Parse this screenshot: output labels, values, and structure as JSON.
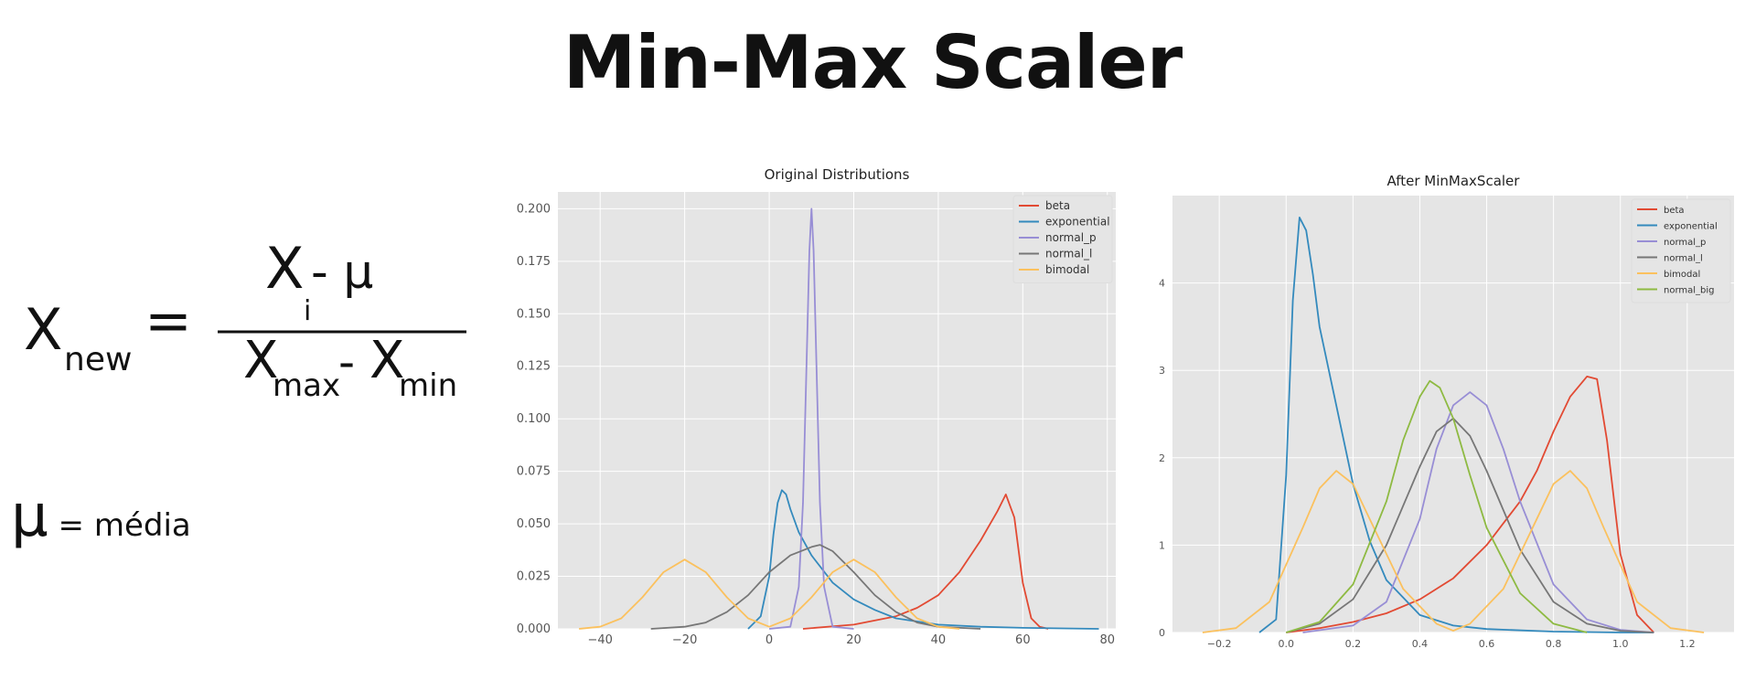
{
  "page": {
    "title": "Min-Max Scaler"
  },
  "formula": {
    "lhs_base": "X",
    "lhs_sub": "new",
    "equals": "=",
    "num_base": "X",
    "num_sub": "i",
    "num_rest": " - μ",
    "den_base1": "X",
    "den_sub1": "max",
    "den_mid": "- ",
    "den_base2": "X",
    "den_sub2": "min"
  },
  "legend_note": {
    "symbol": "μ",
    "text": " = média"
  },
  "chart_data": [
    {
      "type": "line",
      "title": "Original Distributions",
      "xlim": [
        -50,
        82
      ],
      "ylim": [
        0,
        0.208
      ],
      "xticks": [
        -40,
        -20,
        0,
        20,
        40,
        60,
        80
      ],
      "yticks": [
        0.0,
        0.025,
        0.05,
        0.075,
        0.1,
        0.125,
        0.15,
        0.175,
        0.2
      ],
      "ytick_labels": [
        "0.000",
        "0.025",
        "0.050",
        "0.075",
        "0.100",
        "0.125",
        "0.150",
        "0.175",
        "0.200"
      ],
      "xtick_labels": [
        "−40",
        "−20",
        "0",
        "20",
        "40",
        "60",
        "80"
      ],
      "grid": true,
      "legend": "top-right",
      "series": [
        {
          "name": "beta",
          "color": "#E24A33",
          "x": [
            8,
            20,
            30,
            35,
            40,
            45,
            50,
            54,
            56,
            58,
            60,
            62,
            64,
            66
          ],
          "y": [
            0,
            0.002,
            0.006,
            0.01,
            0.016,
            0.027,
            0.042,
            0.056,
            0.064,
            0.053,
            0.022,
            0.005,
            0.001,
            0
          ]
        },
        {
          "name": "exponential",
          "color": "#348ABD",
          "x": [
            -5,
            -2,
            0,
            1,
            2,
            3,
            4,
            5,
            7,
            10,
            15,
            20,
            25,
            30,
            40,
            50,
            60,
            78
          ],
          "y": [
            0,
            0.006,
            0.025,
            0.045,
            0.06,
            0.066,
            0.064,
            0.057,
            0.046,
            0.035,
            0.022,
            0.014,
            0.009,
            0.005,
            0.002,
            0.001,
            0.0005,
            0
          ]
        },
        {
          "name": "normal_p",
          "color": "#988ED5",
          "x": [
            0,
            5,
            7,
            8,
            9,
            9.5,
            10,
            10.5,
            11,
            12,
            13,
            15,
            20
          ],
          "y": [
            0,
            0.001,
            0.02,
            0.06,
            0.14,
            0.18,
            0.2,
            0.18,
            0.14,
            0.06,
            0.02,
            0.001,
            0
          ]
        },
        {
          "name": "normal_l",
          "color": "#777777",
          "x": [
            -28,
            -20,
            -15,
            -10,
            -5,
            0,
            5,
            10,
            12,
            15,
            20,
            25,
            30,
            35,
            40,
            50
          ],
          "y": [
            0,
            0.001,
            0.003,
            0.008,
            0.016,
            0.027,
            0.035,
            0.039,
            0.04,
            0.037,
            0.027,
            0.016,
            0.008,
            0.003,
            0.001,
            0
          ]
        },
        {
          "name": "bimodal",
          "color": "#FBC15E",
          "x": [
            -45,
            -40,
            -35,
            -30,
            -25,
            -20,
            -15,
            -10,
            -5,
            0,
            5,
            10,
            15,
            20,
            25,
            30,
            35,
            40,
            45
          ],
          "y": [
            0,
            0.001,
            0.005,
            0.015,
            0.027,
            0.033,
            0.027,
            0.015,
            0.005,
            0.001,
            0.005,
            0.015,
            0.027,
            0.033,
            0.027,
            0.015,
            0.005,
            0.001,
            0
          ]
        }
      ]
    },
    {
      "type": "line",
      "title": "After MinMaxScaler",
      "xlim": [
        -0.34,
        1.34
      ],
      "ylim": [
        0,
        5.0
      ],
      "xticks": [
        -0.2,
        0.0,
        0.2,
        0.4,
        0.6,
        0.8,
        1.0,
        1.2
      ],
      "xtick_labels": [
        "−0.2",
        "0.0",
        "0.2",
        "0.4",
        "0.6",
        "0.8",
        "1.0",
        "1.2"
      ],
      "yticks": [
        0,
        1,
        2,
        3,
        4
      ],
      "ytick_labels": [
        "0",
        "1",
        "2",
        "3",
        "4"
      ],
      "grid": true,
      "legend": "top-right",
      "series": [
        {
          "name": "beta",
          "color": "#E24A33",
          "x": [
            0.0,
            0.1,
            0.2,
            0.3,
            0.4,
            0.5,
            0.6,
            0.7,
            0.75,
            0.8,
            0.85,
            0.9,
            0.93,
            0.96,
            1.0,
            1.05,
            1.1
          ],
          "y": [
            0,
            0.05,
            0.12,
            0.22,
            0.38,
            0.62,
            1.0,
            1.5,
            1.85,
            2.3,
            2.7,
            2.93,
            2.9,
            2.2,
            0.9,
            0.2,
            0
          ]
        },
        {
          "name": "exponential",
          "color": "#348ABD",
          "x": [
            -0.08,
            -0.03,
            0.0,
            0.02,
            0.04,
            0.06,
            0.08,
            0.1,
            0.15,
            0.2,
            0.25,
            0.3,
            0.4,
            0.5,
            0.6,
            0.8,
            1.0,
            1.1
          ],
          "y": [
            0,
            0.15,
            1.8,
            3.8,
            4.75,
            4.6,
            4.1,
            3.5,
            2.6,
            1.7,
            1.05,
            0.6,
            0.2,
            0.08,
            0.04,
            0.01,
            0,
            0
          ]
        },
        {
          "name": "normal_p",
          "color": "#988ED5",
          "x": [
            0.05,
            0.2,
            0.3,
            0.4,
            0.45,
            0.5,
            0.55,
            0.6,
            0.65,
            0.7,
            0.8,
            0.9,
            1.0,
            1.1
          ],
          "y": [
            0,
            0.08,
            0.35,
            1.3,
            2.1,
            2.6,
            2.75,
            2.6,
            2.1,
            1.5,
            0.55,
            0.15,
            0.03,
            0
          ]
        },
        {
          "name": "normal_l",
          "color": "#777777",
          "x": [
            0.0,
            0.1,
            0.2,
            0.3,
            0.4,
            0.45,
            0.5,
            0.55,
            0.6,
            0.7,
            0.8,
            0.9,
            1.0,
            1.1
          ],
          "y": [
            0,
            0.1,
            0.38,
            1.0,
            1.9,
            2.3,
            2.45,
            2.25,
            1.85,
            0.95,
            0.35,
            0.1,
            0.02,
            0
          ]
        },
        {
          "name": "bimodal",
          "color": "#FBC15E",
          "x": [
            -0.25,
            -0.15,
            -0.05,
            0.05,
            0.1,
            0.15,
            0.2,
            0.25,
            0.35,
            0.45,
            0.5,
            0.55,
            0.65,
            0.75,
            0.8,
            0.85,
            0.9,
            0.95,
            1.05,
            1.15,
            1.25
          ],
          "y": [
            0,
            0.05,
            0.35,
            1.2,
            1.65,
            1.85,
            1.7,
            1.3,
            0.5,
            0.1,
            0.02,
            0.1,
            0.5,
            1.3,
            1.7,
            1.85,
            1.65,
            1.2,
            0.35,
            0.05,
            0
          ]
        },
        {
          "name": "normal_big",
          "color": "#8EBA42",
          "x": [
            0.0,
            0.1,
            0.2,
            0.3,
            0.35,
            0.4,
            0.43,
            0.46,
            0.5,
            0.55,
            0.6,
            0.7,
            0.8,
            0.9
          ],
          "y": [
            0,
            0.12,
            0.55,
            1.5,
            2.2,
            2.7,
            2.88,
            2.8,
            2.45,
            1.8,
            1.2,
            0.45,
            0.1,
            0
          ]
        }
      ]
    }
  ]
}
